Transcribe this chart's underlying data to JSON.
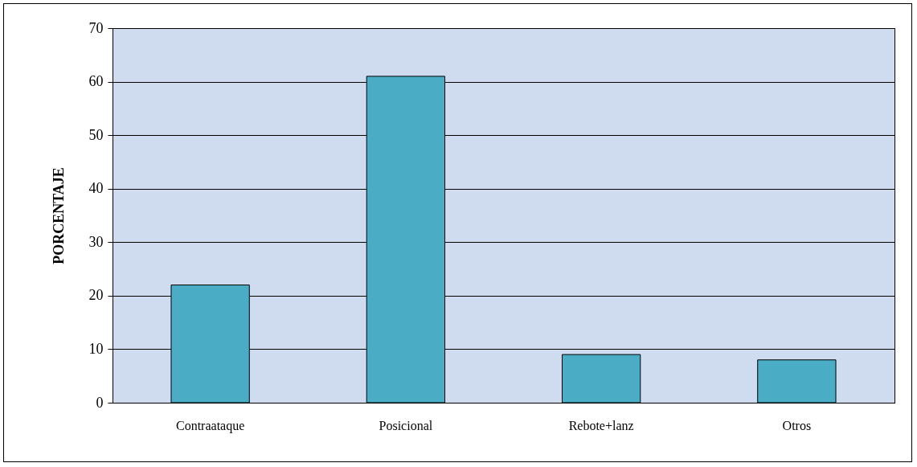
{
  "chart_data": {
    "type": "bar",
    "ylabel": "PORCENTAJE",
    "categories": [
      "Contraataque",
      "Posicional",
      "Rebote+lanz",
      "Otros"
    ],
    "values": [
      22,
      61,
      9,
      8
    ],
    "color": "#4bacc6",
    "ylim": [
      0,
      70
    ],
    "yticks": [
      0,
      10,
      20,
      30,
      40,
      50,
      60,
      70
    ],
    "grid": "y"
  }
}
